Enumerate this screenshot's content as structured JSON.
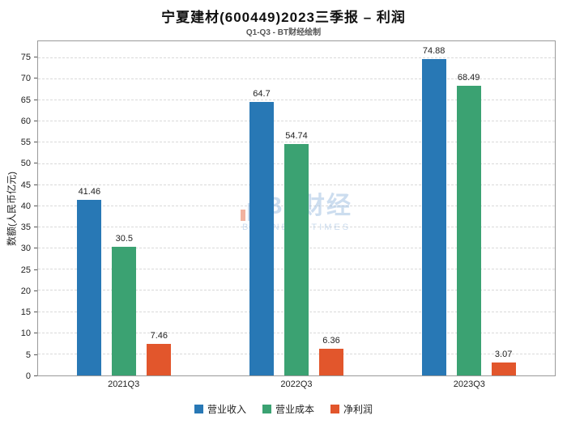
{
  "title": "宁夏建材(600449)2023三季报 – 利润",
  "subtitle": "Q1-Q3 - BT财经绘制",
  "watermark": {
    "main": "BT财经",
    "sub": "BUSINESS TIMES"
  },
  "colors": {
    "revenue_blue": "#2878b5",
    "cost_green": "#3ba272",
    "profit_orange": "#e2562c",
    "watermark_blue": "#8fb4dc",
    "watermark_orange": "#e2562c"
  },
  "chart_data": {
    "type": "bar",
    "title": "宁夏建材(600449)2023三季报 – 利润",
    "subtitle": "Q1-Q3 - BT财经绘制",
    "categories": [
      "2021Q3",
      "2022Q3",
      "2023Q3"
    ],
    "series": [
      {
        "name": "营业收入",
        "color": "#2878b5",
        "values": [
          41.46,
          64.7,
          74.88
        ]
      },
      {
        "name": "营业成本",
        "color": "#3ba272",
        "values": [
          30.5,
          54.74,
          68.49
        ]
      },
      {
        "name": "净利润",
        "color": "#e2562c",
        "values": [
          7.46,
          6.36,
          3.07
        ]
      }
    ],
    "xlabel": "",
    "ylabel": "数额(人民币亿元)",
    "ylim": [
      0,
      79
    ],
    "yticks": [
      0,
      5,
      10,
      15,
      20,
      25,
      30,
      35,
      40,
      45,
      50,
      55,
      60,
      65,
      70,
      75
    ],
    "grid": true,
    "grid_style": "dashed",
    "legend_position": "bottom"
  }
}
